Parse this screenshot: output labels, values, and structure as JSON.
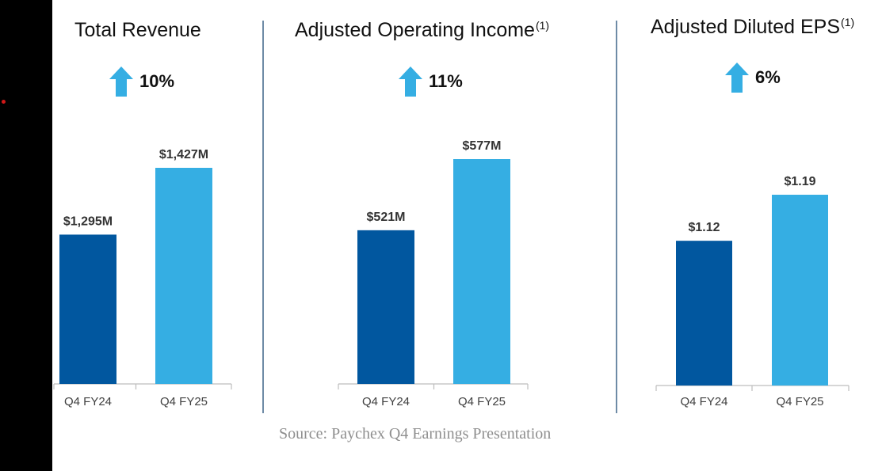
{
  "colors": {
    "q4fy24": "#01579f",
    "q4fy25": "#35aee3",
    "arrow": "#35aee3",
    "axis": "#bdbdbd"
  },
  "source_text": "Source: Paychex Q4 Earnings Presentation",
  "growth_icon": "up-arrow-icon",
  "chart_data": [
    {
      "type": "bar",
      "title": "Total Revenue",
      "title_sup": "",
      "growth": "10%",
      "categories": [
        "Q4 FY24",
        "Q4 FY25"
      ],
      "values": [
        1295,
        1427
      ],
      "value_labels": [
        "$1,295M",
        "$1,427M"
      ],
      "unit": "$M",
      "ylim": [
        1000,
        1500
      ],
      "grid": false
    },
    {
      "type": "bar",
      "title": "Adjusted Operating Income",
      "title_sup": "(1)",
      "growth": "11%",
      "categories": [
        "Q4 FY24",
        "Q4 FY25"
      ],
      "values": [
        521,
        577
      ],
      "value_labels": [
        "$521M",
        "$577M"
      ],
      "unit": "$M",
      "ylim": [
        400,
        610
      ],
      "grid": false
    },
    {
      "type": "bar",
      "title": "Adjusted Diluted EPS",
      "title_sup": "(1)",
      "growth": "6%",
      "categories": [
        "Q4 FY24",
        "Q4 FY25"
      ],
      "values": [
        1.12,
        1.19
      ],
      "value_labels": [
        "$1.12",
        "$1.19"
      ],
      "unit": "$",
      "ylim": [
        0.9,
        1.3
      ],
      "grid": false
    }
  ]
}
